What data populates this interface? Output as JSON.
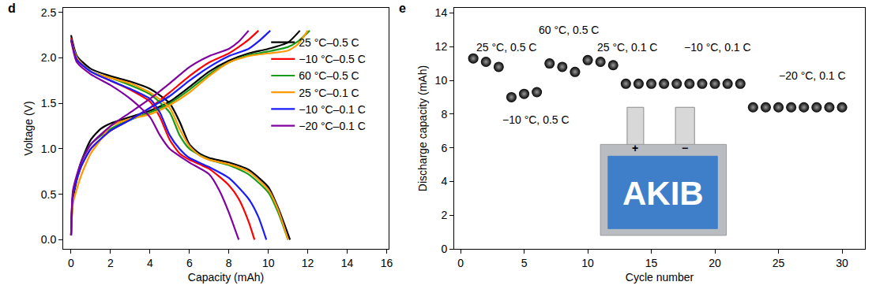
{
  "chart_data": [
    {
      "type": "line",
      "label": "d",
      "x_label": "Capacity (mAh)",
      "y_label": "Voltage (V)",
      "xlim": [
        -0.4,
        16.1
      ],
      "xticks": [
        0,
        2,
        4,
        6,
        8,
        10,
        12,
        14,
        16
      ],
      "ylim": [
        -0.1,
        2.55
      ],
      "yticks": [
        {
          "value": 0,
          "label": "0.0"
        },
        0.5,
        {
          "value": 1,
          "label": "1.0"
        },
        1.5,
        {
          "value": 2,
          "label": "2.0"
        },
        2.5
      ],
      "grid": false,
      "legend": "upper right",
      "series": [
        {
          "name": "25 °C–0.5 C",
          "color": "#000000",
          "x": [
            0,
            0.1,
            0.5,
            1,
            1.5,
            2,
            3,
            4,
            5,
            6,
            7,
            8,
            9,
            10,
            11,
            11.6,
            null,
            0,
            0.3,
            1,
            2,
            3,
            4,
            5,
            5.5,
            6,
            6.5,
            7,
            8,
            9,
            10,
            10.5,
            11.1
          ],
          "values": [
            0.05,
            0.45,
            0.85,
            1.1,
            1.22,
            1.28,
            1.35,
            1.42,
            1.52,
            1.68,
            1.85,
            1.97,
            2.05,
            2.1,
            2.17,
            2.3,
            null,
            2.25,
            2.02,
            1.88,
            1.8,
            1.74,
            1.66,
            1.5,
            1.3,
            1.05,
            0.95,
            0.9,
            0.85,
            0.77,
            0.58,
            0.35,
            0.0
          ]
        },
        {
          "name": "−10 °C–0.5 C",
          "color": "#ff0000",
          "x": [
            0,
            0.1,
            0.5,
            1,
            2,
            3,
            4,
            5,
            6,
            7,
            8,
            8.5,
            9,
            9.5,
            null,
            0,
            0.3,
            1,
            2,
            3,
            4,
            4.5,
            5,
            5.5,
            6,
            7,
            8,
            8.5,
            9,
            9.3
          ],
          "values": [
            0.05,
            0.5,
            0.8,
            1.0,
            1.2,
            1.32,
            1.45,
            1.62,
            1.8,
            1.95,
            2.05,
            2.12,
            2.2,
            2.3,
            null,
            2.22,
            1.98,
            1.85,
            1.75,
            1.65,
            1.52,
            1.35,
            1.1,
            0.95,
            0.88,
            0.78,
            0.6,
            0.45,
            0.2,
            0.0
          ]
        },
        {
          "name": "60 °C–0.5 C",
          "color": "#1a9a1a",
          "x": [
            0,
            0.1,
            0.5,
            1,
            2,
            3,
            4,
            5,
            6,
            7,
            8,
            9,
            10,
            11,
            11.5,
            12.1,
            null,
            0,
            0.3,
            1,
            2,
            3,
            4,
            5,
            5.5,
            6,
            7,
            8,
            9,
            10,
            10.5,
            11.0
          ],
          "values": [
            0.05,
            0.5,
            0.85,
            1.05,
            1.22,
            1.32,
            1.4,
            1.5,
            1.65,
            1.82,
            1.95,
            2.03,
            2.07,
            2.12,
            2.18,
            2.3,
            null,
            2.2,
            2.0,
            1.85,
            1.78,
            1.7,
            1.6,
            1.4,
            1.15,
            1.0,
            0.88,
            0.82,
            0.72,
            0.52,
            0.3,
            0.0
          ]
        },
        {
          "name": "25 °C–0.1 C",
          "color": "#ff9900",
          "x": [
            0,
            0.1,
            0.5,
            1,
            1.5,
            2,
            3,
            4,
            5,
            6,
            7,
            8,
            9,
            10,
            11,
            11.5,
            12.0,
            null,
            0,
            0.3,
            1,
            2,
            3,
            4,
            5,
            5.5,
            6,
            6.5,
            7,
            8,
            9,
            10,
            10.5,
            11.0
          ],
          "values": [
            0.05,
            0.4,
            0.7,
            0.95,
            1.1,
            1.25,
            1.33,
            1.38,
            1.48,
            1.62,
            1.8,
            1.95,
            2.02,
            2.05,
            2.08,
            2.15,
            2.3,
            null,
            2.2,
            2.0,
            1.85,
            1.78,
            1.72,
            1.62,
            1.45,
            1.22,
            1.03,
            0.93,
            0.88,
            0.83,
            0.75,
            0.55,
            0.33,
            0.0
          ]
        },
        {
          "name": "−10 °C–0.1 C",
          "color": "#1a1aff",
          "x": [
            0,
            0.1,
            0.5,
            1,
            2,
            3,
            4,
            5,
            6,
            7,
            8,
            9,
            9.5,
            10.1,
            null,
            0,
            0.3,
            1,
            2,
            3,
            4,
            4.5,
            5,
            5.5,
            6,
            7,
            8,
            9,
            9.5,
            9.9
          ],
          "values": [
            0.05,
            0.5,
            0.8,
            1.0,
            1.2,
            1.32,
            1.45,
            1.58,
            1.75,
            1.9,
            2.02,
            2.1,
            2.18,
            2.3,
            null,
            2.2,
            1.98,
            1.85,
            1.75,
            1.66,
            1.55,
            1.4,
            1.15,
            1.0,
            0.9,
            0.8,
            0.68,
            0.45,
            0.25,
            0.0
          ]
        },
        {
          "name": "−20 °C–0.1 C",
          "color": "#8000a0",
          "x": [
            0,
            0.1,
            0.5,
            1,
            2,
            3,
            4,
            5,
            6,
            7,
            8,
            8.5,
            9.0,
            null,
            0,
            0.3,
            1,
            2,
            3,
            4,
            4.5,
            5,
            6,
            7,
            7.5,
            8,
            8.5
          ],
          "values": [
            0.05,
            0.55,
            0.85,
            1.05,
            1.25,
            1.4,
            1.55,
            1.72,
            1.9,
            2.02,
            2.1,
            2.18,
            2.3,
            null,
            2.2,
            1.95,
            1.82,
            1.7,
            1.55,
            1.35,
            1.15,
            1.0,
            0.85,
            0.72,
            0.55,
            0.3,
            0.0
          ]
        }
      ]
    },
    {
      "type": "scatter",
      "label": "e",
      "x_label": "Cycle number",
      "y_label": "Discharge capacity (mAh)",
      "xlim": [
        -0.5,
        31.8
      ],
      "xticks": [
        0,
        5,
        10,
        15,
        20,
        25,
        30
      ],
      "ylim": [
        0,
        14.3
      ],
      "yticks": [
        0,
        2,
        4,
        6,
        8,
        10,
        12,
        14
      ],
      "grid": false,
      "color": "#000000",
      "marker": "sphere",
      "x": [
        1,
        2,
        3,
        4,
        5,
        6,
        7,
        8,
        9,
        10,
        11,
        12,
        13,
        14,
        15,
        16,
        17,
        18,
        19,
        20,
        21,
        22,
        23,
        24,
        25,
        26,
        27,
        28,
        29,
        30
      ],
      "values": [
        11.3,
        11.1,
        10.8,
        9.0,
        9.2,
        9.3,
        11.0,
        10.8,
        10.5,
        11.2,
        11.1,
        10.9,
        9.8,
        9.8,
        9.8,
        9.8,
        9.8,
        9.8,
        9.8,
        9.8,
        9.8,
        9.8,
        8.4,
        8.4,
        8.4,
        8.4,
        8.4,
        8.4,
        8.4,
        8.4
      ],
      "annotations": [
        {
          "text": "25 °C, 0.5 C",
          "x": 3.6,
          "y": 11.95
        },
        {
          "text": "−10 °C, 0.5 C",
          "x": 5.9,
          "y": 7.65
        },
        {
          "text": "60 °C, 0.5 C",
          "x": 8.5,
          "y": 13.0
        },
        {
          "text": "25 °C, 0.1 C",
          "x": 13.1,
          "y": 11.95
        },
        {
          "text": "−10 °C, 0.1 C",
          "x": 20.2,
          "y": 11.95
        },
        {
          "text": "−20 °C, 0.1 C",
          "x": 27.7,
          "y": 10.3
        }
      ],
      "inset_texts": [
        "+",
        "−",
        "AKIB"
      ]
    }
  ]
}
